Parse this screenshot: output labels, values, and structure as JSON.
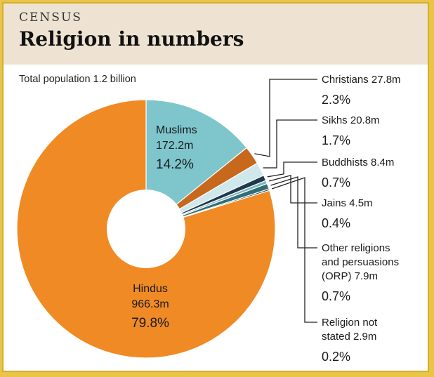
{
  "header": {
    "kicker": "CENSUS",
    "title": "Religion in numbers"
  },
  "subtitle": "Total population 1.2 billion",
  "colors": {
    "Hindus": "#f08a24",
    "Muslims": "#7ec6cc",
    "Christians": "#c8681c",
    "Sikhs": "#cfe8ec",
    "Buddhists": "#1f3a4d",
    "Jains": "#7fb7bd",
    "ORP": "#2f6f78",
    "NotStated": "#333333"
  },
  "chart_data": {
    "type": "pie",
    "title": "Religion in numbers",
    "subtitle": "Total population 1.2 billion",
    "slices": [
      {
        "key": "Muslims",
        "value_m": 172.2,
        "percent": 14.2,
        "lines": [
          "Muslims",
          "172.2m"
        ],
        "pct_label": "14.2%"
      },
      {
        "key": "Christians",
        "value_m": 27.8,
        "percent": 2.3,
        "lines": [
          "Christians 27.8m"
        ],
        "pct_label": "2.3%"
      },
      {
        "key": "Sikhs",
        "value_m": 20.8,
        "percent": 1.7,
        "lines": [
          "Sikhs 20.8m"
        ],
        "pct_label": "1.7%"
      },
      {
        "key": "Buddhists",
        "value_m": 8.4,
        "percent": 0.7,
        "lines": [
          "Buddhists 8.4m"
        ],
        "pct_label": "0.7%"
      },
      {
        "key": "Jains",
        "value_m": 4.5,
        "percent": 0.4,
        "lines": [
          "Jains 4.5m"
        ],
        "pct_label": "0.4%"
      },
      {
        "key": "ORP",
        "value_m": 7.9,
        "percent": 0.7,
        "lines": [
          "Other religions",
          "and persuasions",
          "(ORP) 7.9m"
        ],
        "pct_label": "0.7%"
      },
      {
        "key": "NotStated",
        "value_m": 2.9,
        "percent": 0.2,
        "lines": [
          "Religion not",
          "stated 2.9m"
        ],
        "pct_label": "0.2%"
      },
      {
        "key": "Hindus",
        "value_m": 966.3,
        "percent": 79.8,
        "lines": [
          "Hindus",
          "966.3m"
        ],
        "pct_label": "79.8%"
      }
    ]
  }
}
